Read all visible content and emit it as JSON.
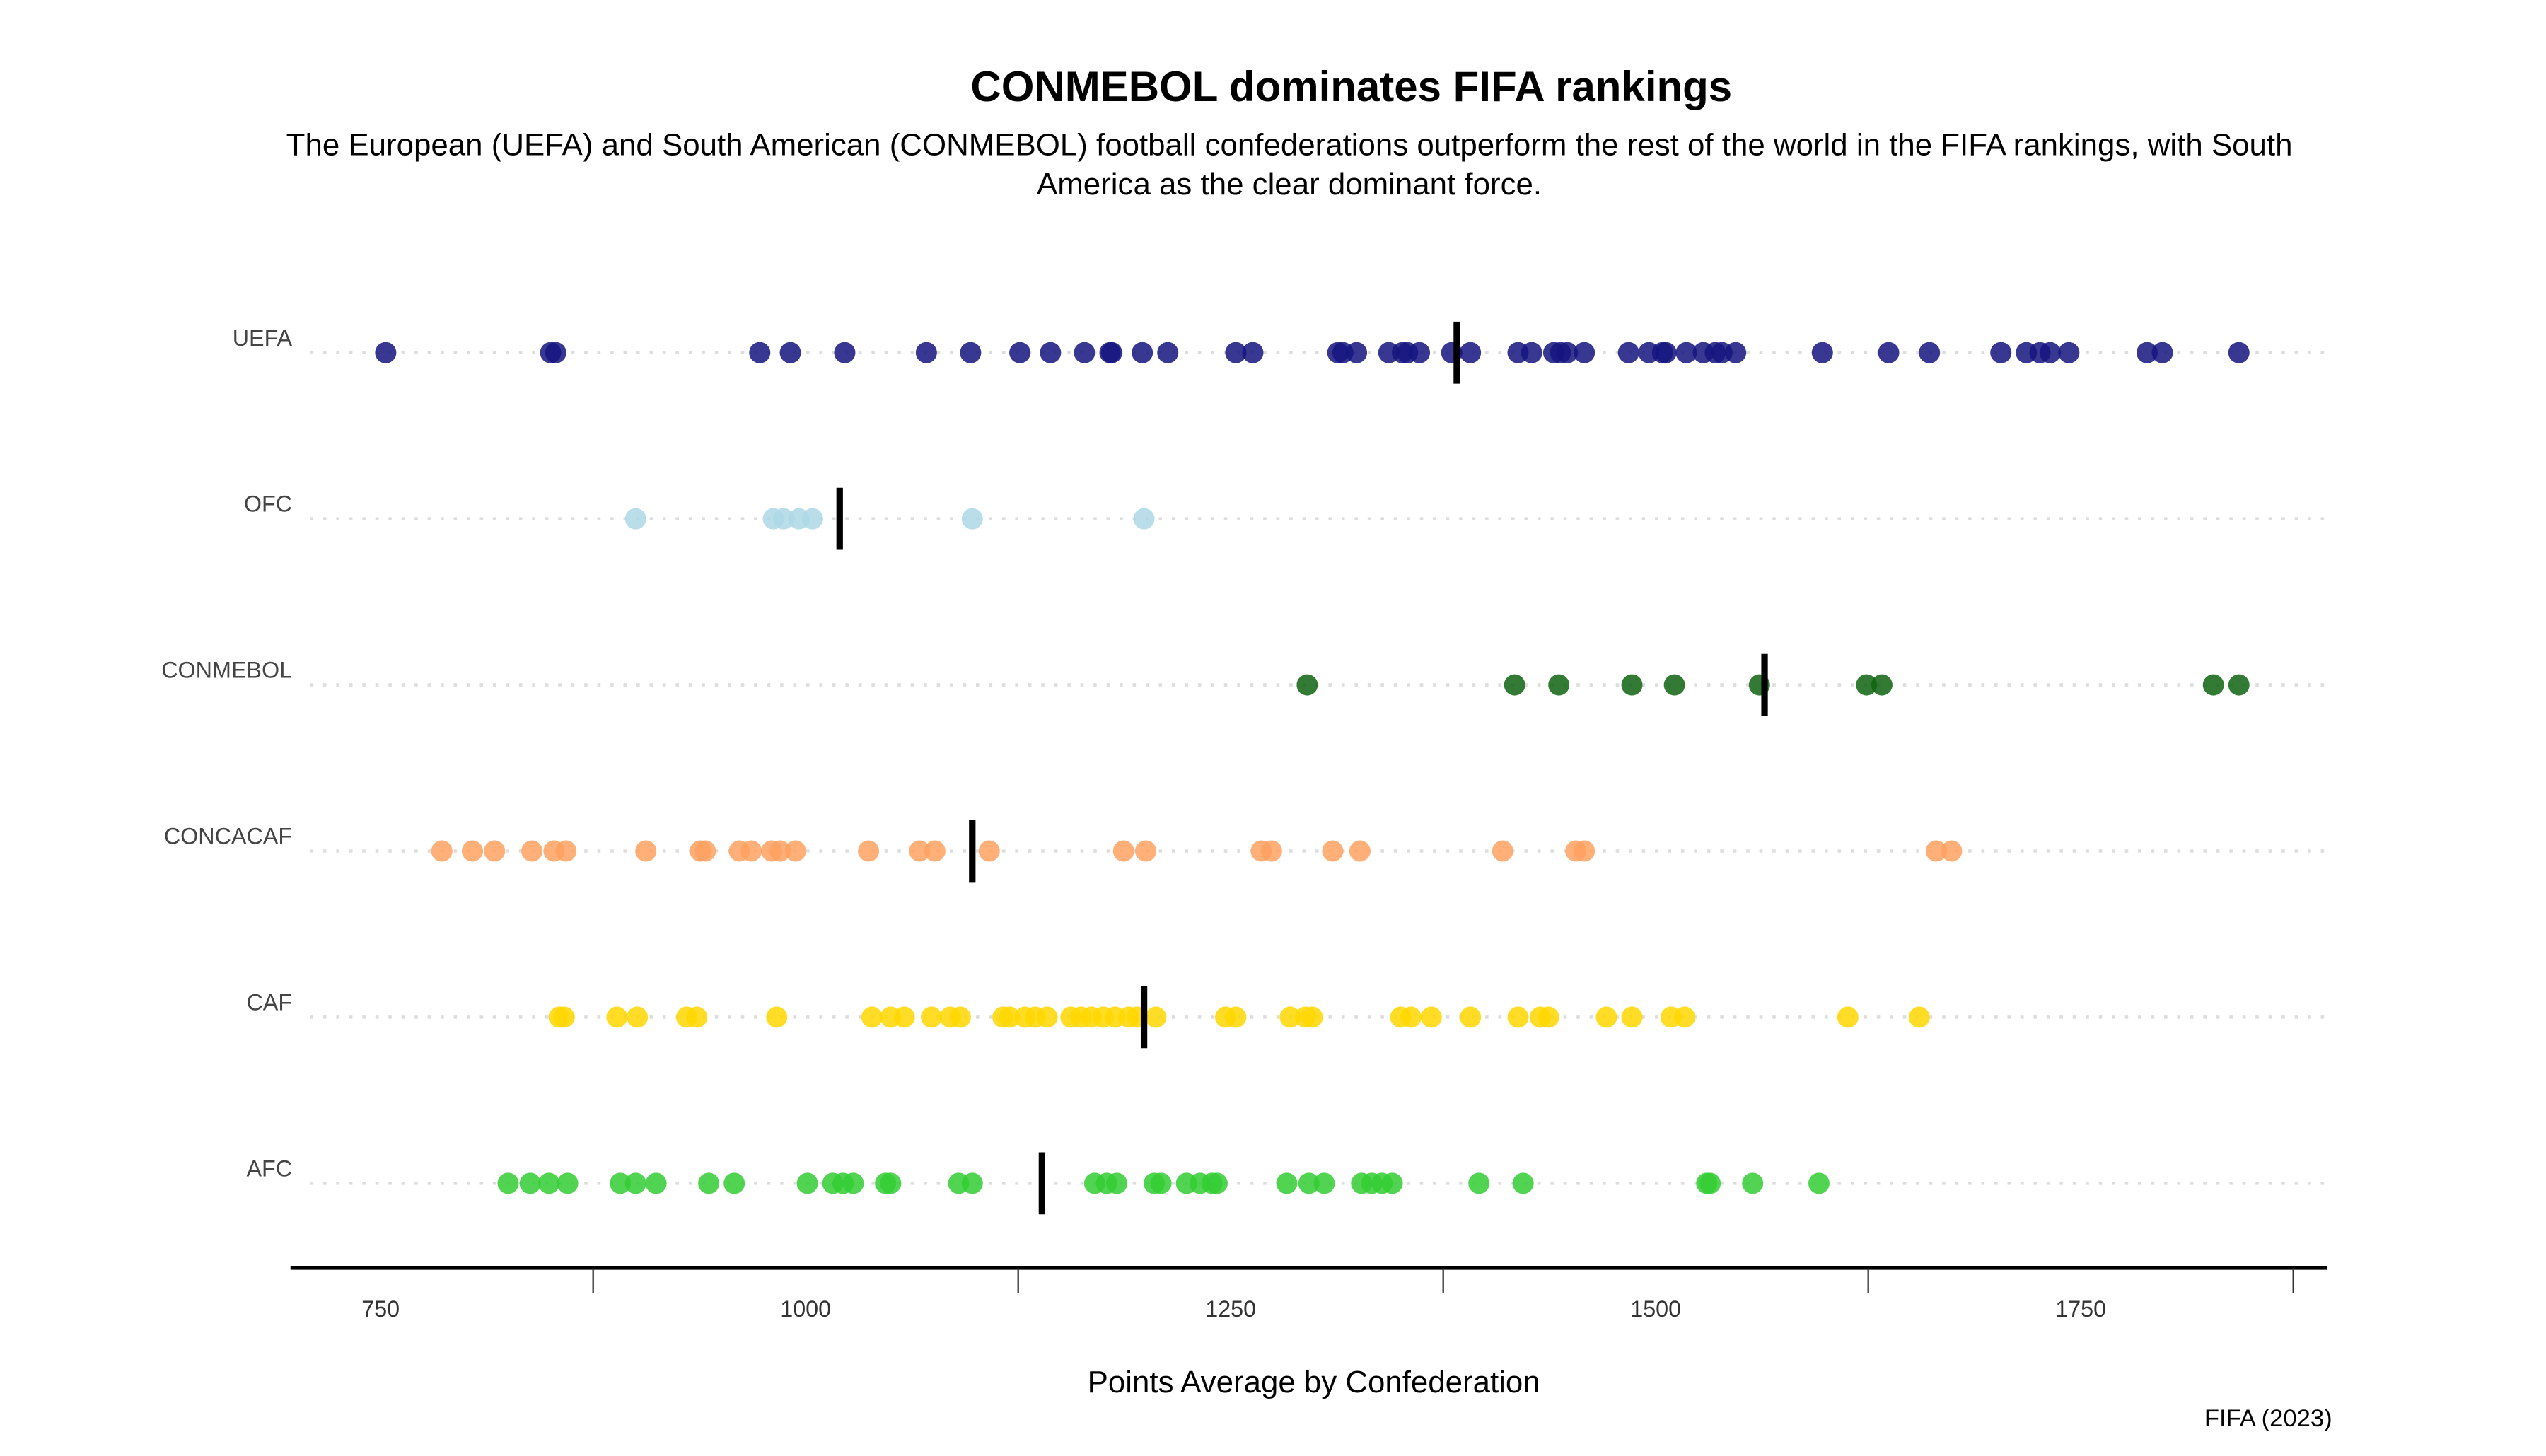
{
  "chart_data": {
    "type": "strip",
    "title": "CONMEBOL dominates FIFA rankings",
    "subtitle": "The European (UEFA) and South American (CONMEBOL) football confederations outperform the rest of the world in the FIFA rankings, with South America as the clear dominant force.",
    "x_label": "Points Average by Confederation",
    "caption": "FIFA (2023)",
    "xlim": [
      697,
      1895
    ],
    "xticks": [
      750,
      1000,
      1250,
      1500,
      1750
    ],
    "xminor_ticks": [
      875,
      1125,
      1375,
      1625,
      1875
    ],
    "series": [
      {
        "name": "UEFA",
        "color": "#15157f",
        "mean": 1383,
        "values": [
          753,
          850,
          853,
          973,
          991,
          1023,
          1071,
          1097,
          1126,
          1144,
          1164,
          1179,
          1180,
          1198,
          1213,
          1253,
          1263,
          1313,
          1316,
          1324,
          1343,
          1351,
          1354,
          1361,
          1380,
          1391,
          1419,
          1427,
          1440,
          1444,
          1448,
          1458,
          1484,
          1496,
          1504,
          1506,
          1518,
          1528,
          1535,
          1539,
          1547,
          1598,
          1637,
          1661,
          1703,
          1718,
          1726,
          1732,
          1743,
          1789,
          1798,
          1843
        ]
      },
      {
        "name": "OFC",
        "color": "#add8e6",
        "mean": 1020,
        "values": [
          900,
          981,
          987,
          996,
          1004,
          1098,
          1199
        ]
      },
      {
        "name": "CONMEBOL",
        "color": "#0f6410",
        "mean": 1564,
        "values": [
          1295,
          1417,
          1443,
          1486,
          1511,
          1561,
          1624,
          1633,
          1828,
          1843
        ]
      },
      {
        "name": "CONCACAF",
        "color": "#ffa160",
        "mean": 1098,
        "values": [
          786,
          804,
          817,
          839,
          852,
          859,
          906,
          938,
          941,
          961,
          968,
          980,
          985,
          994,
          1037,
          1067,
          1076,
          1108,
          1187,
          1200,
          1268,
          1274,
          1310,
          1326,
          1410,
          1453,
          1458,
          1665,
          1674
        ]
      },
      {
        "name": "CAF",
        "color": "#ffd700",
        "mean": 1199,
        "values": [
          855,
          858,
          889,
          901,
          930,
          936,
          983,
          1039,
          1050,
          1058,
          1074,
          1085,
          1091,
          1116,
          1120,
          1129,
          1135,
          1142,
          1156,
          1162,
          1168,
          1175,
          1182,
          1190,
          1195,
          1206,
          1247,
          1253,
          1285,
          1294,
          1298,
          1350,
          1356,
          1368,
          1391,
          1419,
          1432,
          1437,
          1471,
          1486,
          1509,
          1517,
          1613,
          1655
        ]
      },
      {
        "name": "AFC",
        "color": "#32cd32",
        "mean": 1139,
        "values": [
          825,
          838,
          849,
          860,
          891,
          900,
          912,
          943,
          958,
          1001,
          1016,
          1022,
          1028,
          1047,
          1050,
          1090,
          1098,
          1170,
          1177,
          1183,
          1205,
          1209,
          1224,
          1232,
          1239,
          1242,
          1283,
          1296,
          1305,
          1327,
          1333,
          1339,
          1345,
          1396,
          1422,
          1530,
          1532,
          1557,
          1596
        ]
      }
    ]
  }
}
